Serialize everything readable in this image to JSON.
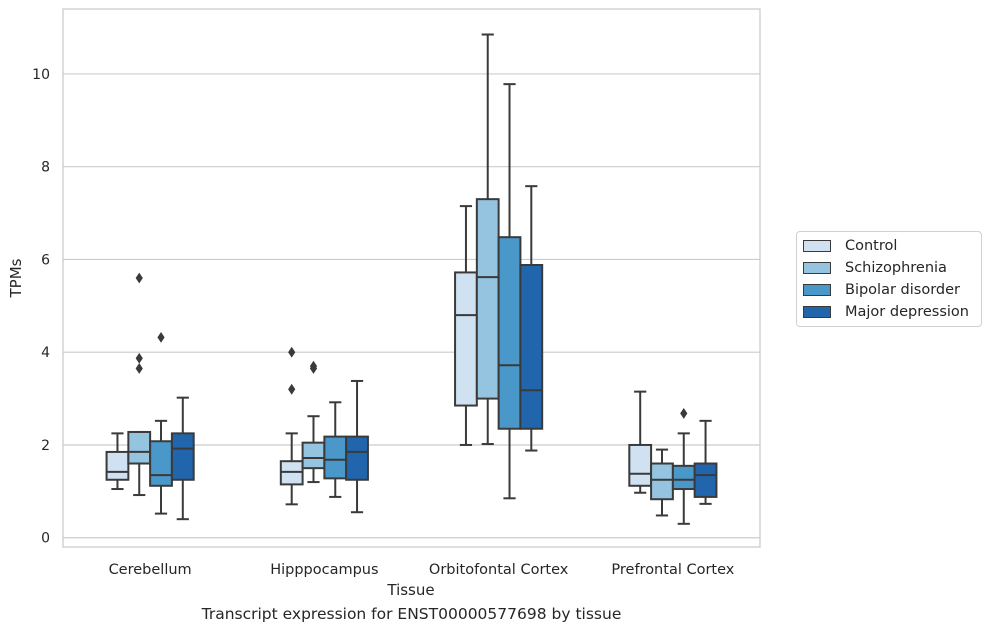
{
  "caption": "Transcript expression for ENST00000577698 by tissue",
  "chart_data": {
    "type": "box",
    "title": "",
    "xlabel": "Tissue",
    "ylabel": "TPMs",
    "ylim": [
      -0.2,
      11.4
    ],
    "yticks": [
      0,
      2,
      4,
      6,
      8,
      10
    ],
    "grid": "horizontal",
    "legend_position": "right",
    "categories": [
      "Cerebellum",
      "Hipppocampus",
      "Orbitofontal Cortex",
      "Prefrontal Cortex"
    ],
    "series": [
      {
        "name": "Control",
        "color": "#d0e1f2",
        "boxes": [
          {
            "whislo": 1.05,
            "q1": 1.25,
            "med": 1.42,
            "q3": 1.85,
            "whishi": 2.25,
            "fliers": []
          },
          {
            "whislo": 0.72,
            "q1": 1.15,
            "med": 1.42,
            "q3": 1.65,
            "whishi": 2.25,
            "fliers": [
              3.2,
              4.0
            ]
          },
          {
            "whislo": 2.0,
            "q1": 2.85,
            "med": 4.8,
            "q3": 5.72,
            "whishi": 7.15,
            "fliers": []
          },
          {
            "whislo": 0.97,
            "q1": 1.12,
            "med": 1.38,
            "q3": 2.0,
            "whishi": 3.15,
            "fliers": []
          }
        ]
      },
      {
        "name": "Schizophrenia",
        "color": "#94c4df",
        "boxes": [
          {
            "whislo": 0.92,
            "q1": 1.6,
            "med": 1.85,
            "q3": 2.28,
            "whishi": 2.28,
            "fliers": [
              3.65,
              3.87,
              5.6
            ]
          },
          {
            "whislo": 1.2,
            "q1": 1.5,
            "med": 1.72,
            "q3": 2.05,
            "whishi": 2.62,
            "fliers": [
              3.65,
              3.7
            ]
          },
          {
            "whislo": 2.02,
            "q1": 3.0,
            "med": 5.62,
            "q3": 7.3,
            "whishi": 10.85,
            "fliers": []
          },
          {
            "whislo": 0.48,
            "q1": 0.83,
            "med": 1.25,
            "q3": 1.6,
            "whishi": 1.9,
            "fliers": []
          }
        ]
      },
      {
        "name": "Bipolar disorder",
        "color": "#4a98c9",
        "boxes": [
          {
            "whislo": 0.52,
            "q1": 1.12,
            "med": 1.35,
            "q3": 2.08,
            "whishi": 2.52,
            "fliers": [
              4.32
            ]
          },
          {
            "whislo": 0.88,
            "q1": 1.28,
            "med": 1.68,
            "q3": 2.18,
            "whishi": 2.92,
            "fliers": []
          },
          {
            "whislo": 0.85,
            "q1": 2.35,
            "med": 3.72,
            "q3": 6.48,
            "whishi": 9.78,
            "fliers": []
          },
          {
            "whislo": 0.3,
            "q1": 1.05,
            "med": 1.25,
            "q3": 1.55,
            "whishi": 2.25,
            "fliers": [
              2.68
            ]
          }
        ]
      },
      {
        "name": "Major depression",
        "color": "#2166ac",
        "boxes": [
          {
            "whislo": 0.4,
            "q1": 1.25,
            "med": 1.92,
            "q3": 2.25,
            "whishi": 3.02,
            "fliers": []
          },
          {
            "whislo": 0.55,
            "q1": 1.25,
            "med": 1.85,
            "q3": 2.18,
            "whishi": 3.38,
            "fliers": []
          },
          {
            "whislo": 1.88,
            "q1": 2.35,
            "med": 3.18,
            "q3": 5.88,
            "whishi": 7.58,
            "fliers": []
          },
          {
            "whislo": 0.73,
            "q1": 0.88,
            "med": 1.35,
            "q3": 1.6,
            "whishi": 2.52,
            "fliers": []
          }
        ]
      }
    ]
  }
}
